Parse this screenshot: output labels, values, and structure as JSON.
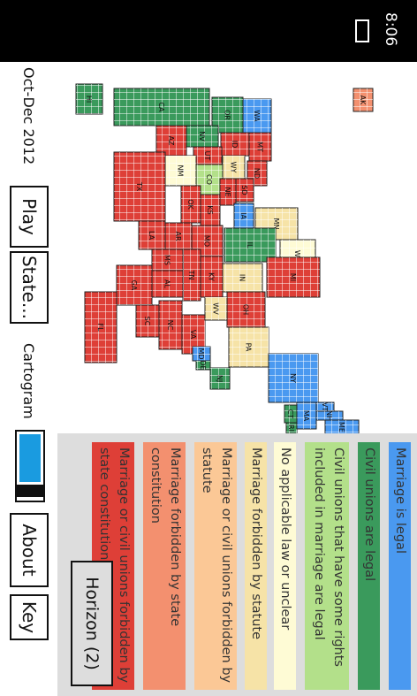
{
  "status_bar": {
    "time": "8:06"
  },
  "period": "Oct-Dec 2012",
  "buttons": {
    "play": "Play",
    "state": "State...",
    "about": "About",
    "key": "Key",
    "horizon": "Horizon (2)"
  },
  "cartogram_label": "Cartogram",
  "legend": [
    {
      "label": "Marriage is legal",
      "color": "#4a99f0"
    },
    {
      "label": "Civil unions are legal",
      "color": "#3a9a5c"
    },
    {
      "label": "Civil unions that have some rights included in marriage are legal",
      "color": "#b3e08a"
    },
    {
      "label": "No applicable law or unclear",
      "color": "#fefbd5"
    },
    {
      "label": "Marriage forbidden by statute",
      "color": "#f6e3a7"
    },
    {
      "label": "Marriage or civil unions forbidden by statute",
      "color": "#fbc896"
    },
    {
      "label": "Marriage forbidden by state constitution",
      "color": "#f3906f"
    },
    {
      "label": "Marriage or civil unions forbidden by state constitution",
      "color": "#de3f37"
    }
  ],
  "map": {
    "states": [
      {
        "label": "CA",
        "status": 1
      },
      {
        "label": "WA",
        "status": 0
      },
      {
        "label": "OR",
        "status": 1
      },
      {
        "label": "NV",
        "status": 1
      },
      {
        "label": "ID",
        "status": 7
      },
      {
        "label": "MT",
        "status": 7
      },
      {
        "label": "WY",
        "status": 4
      },
      {
        "label": "UT",
        "status": 7
      },
      {
        "label": "CO",
        "status": 2
      },
      {
        "label": "AZ",
        "status": 7
      },
      {
        "label": "NM",
        "status": 3
      },
      {
        "label": "ND",
        "status": 7
      },
      {
        "label": "SD",
        "status": 7
      },
      {
        "label": "NE",
        "status": 7
      },
      {
        "label": "KS",
        "status": 7
      },
      {
        "label": "OK",
        "status": 7
      },
      {
        "label": "TX",
        "status": 7
      },
      {
        "label": "MN",
        "status": 4
      },
      {
        "label": "IA",
        "status": 0
      },
      {
        "label": "MO",
        "status": 7
      },
      {
        "label": "AR",
        "status": 7
      },
      {
        "label": "LA",
        "status": 7
      },
      {
        "label": "WI",
        "status": 3
      },
      {
        "label": "IL",
        "status": 1
      },
      {
        "label": "MI",
        "status": 7
      },
      {
        "label": "IN",
        "status": 4
      },
      {
        "label": "OH",
        "status": 7
      },
      {
        "label": "KY",
        "status": 7
      },
      {
        "label": "TN",
        "status": 7
      },
      {
        "label": "MS",
        "status": 7
      },
      {
        "label": "AL",
        "status": 7
      },
      {
        "label": "GA",
        "status": 7
      },
      {
        "label": "FL",
        "status": 7
      },
      {
        "label": "SC",
        "status": 7
      },
      {
        "label": "NC",
        "status": 7
      },
      {
        "label": "VA",
        "status": 7
      },
      {
        "label": "WV",
        "status": 4
      },
      {
        "label": "PA",
        "status": 4
      },
      {
        "label": "MD",
        "status": 0
      },
      {
        "label": "DE",
        "status": 1
      },
      {
        "label": "NJ",
        "status": 1
      },
      {
        "label": "NY",
        "status": 0
      },
      {
        "label": "CT",
        "status": 1
      },
      {
        "label": "RI",
        "status": 1
      },
      {
        "label": "MA",
        "status": 0
      },
      {
        "label": "VT",
        "status": 0
      },
      {
        "label": "NH",
        "status": 0
      },
      {
        "label": "ME",
        "status": 0
      },
      {
        "label": "AK",
        "status": 6
      },
      {
        "label": "HI",
        "status": 1
      }
    ]
  }
}
